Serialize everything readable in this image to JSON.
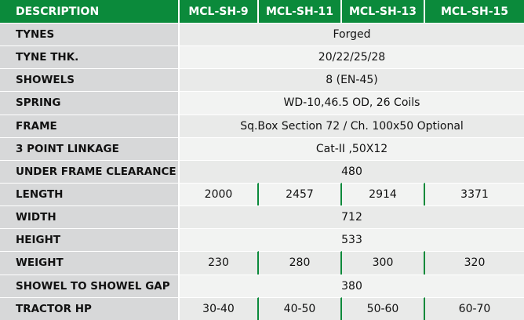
{
  "header": {
    "description": "DESCRIPTION",
    "models": [
      "MCL-SH-9",
      "MCL-SH-11",
      "MCL-SH-13",
      "MCL-SH-15"
    ]
  },
  "rows": [
    {
      "label": "TYNES",
      "value": "Forged"
    },
    {
      "label": "TYNE THK.",
      "value": "20/22/25/28"
    },
    {
      "label": "SHOWELS",
      "value": "8 (EN-45)"
    },
    {
      "label": "SPRING",
      "value": "WD-10,46.5 OD, 26 Coils"
    },
    {
      "label": "FRAME",
      "value": "Sq.Box Section 72 / Ch. 100x50 Optional"
    },
    {
      "label": "3 POINT LINKAGE",
      "value": "Cat-II ,50X12"
    },
    {
      "label": "UNDER FRAME CLEARANCE",
      "value": "480"
    },
    {
      "label": "LENGTH",
      "values": [
        "2000",
        "2457",
        "2914",
        "3371"
      ]
    },
    {
      "label": "WIDTH",
      "value": "712"
    },
    {
      "label": "HEIGHT",
      "value": "533"
    },
    {
      "label": "WEIGHT",
      "values": [
        "230",
        "280",
        "300",
        "320"
      ]
    },
    {
      "label": "SHOWEL TO SHOWEL GAP",
      "value": "380"
    },
    {
      "label": "TRACTOR HP",
      "values": [
        "30-40",
        "40-50",
        "50-60",
        "60-70"
      ]
    }
  ],
  "colors": {
    "header_green": "#0b8a3b",
    "label_gray": "#d7d8d9",
    "value_gray": "#e9eae9"
  }
}
